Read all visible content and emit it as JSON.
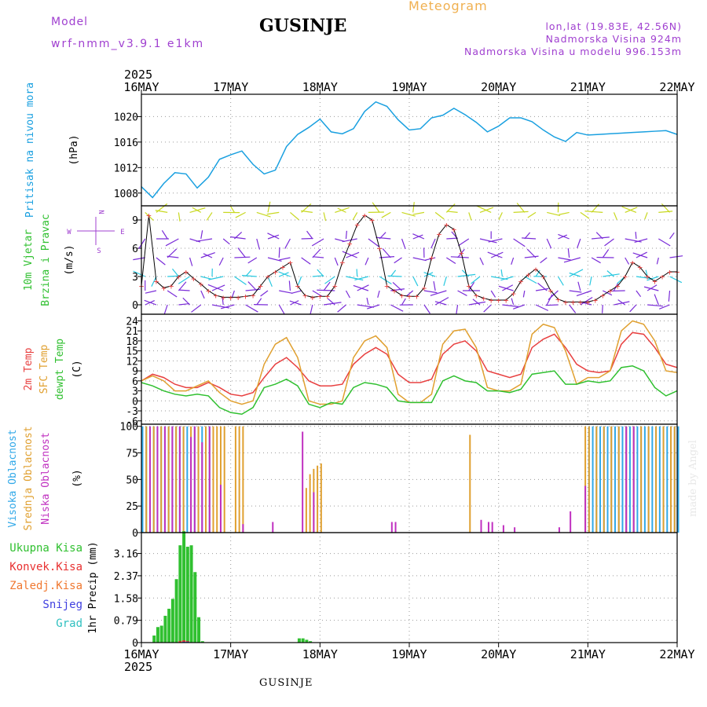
{
  "header": {
    "title": "GUSINJE",
    "product": "Meteogram",
    "model_label": "Model",
    "model_name": "wrf-nmm_v3.9.1  e1km",
    "lonlat": "lon,lat (19.83E, 42.56N)",
    "altitude": "Nadmorska Visina 924m",
    "model_altitude": "Nadmorska Visina u modelu 996.153m"
  },
  "footer": {
    "location": "GUSINJE"
  },
  "watermark": "made by Angel",
  "colors": {
    "pressure": "#1aa0e0",
    "wind_low": "#7a2cd8",
    "wind_mid": "#28c8e0",
    "wind_high": "#c8d820",
    "temp2m": "#e84040",
    "sfc_temp": "#e0a030",
    "dewpoint": "#30c030",
    "high_cloud": "#30a8e8",
    "mid_cloud": "#e0a030",
    "low_cloud": "#c030c0",
    "total_precip": "#30c030",
    "conv_precip": "#e83030",
    "snow": "#4040e0",
    "freezing": "#f07830",
    "hail": "#30c0c0",
    "grid": "#9a9a9a",
    "purple": "#a040d0"
  },
  "chart_data": [
    {
      "type": "line",
      "panel": "pressure",
      "ylabel_title": "Pritisak na nivou mora",
      "ylabel_unit": "(hPa)",
      "ylim": [
        1006,
        1023.5
      ],
      "yticks": [
        1008,
        1012,
        1016,
        1020
      ],
      "x_axis": {
        "year": "2025",
        "start": "16MAY",
        "end": "22MAY",
        "tick_labels": [
          "16MAY",
          "17MAY",
          "18MAY",
          "19MAY",
          "20MAY",
          "21MAY",
          "22MAY"
        ]
      },
      "x_unit": "hours from 16MAY 00UTC",
      "grid": true,
      "series": [
        {
          "x": [
            0,
            3,
            6,
            9,
            12,
            15,
            18,
            21,
            24,
            27,
            30,
            33,
            36,
            39,
            42,
            45,
            48,
            51,
            54,
            57,
            60,
            63,
            66,
            69,
            72,
            75,
            78,
            81,
            84,
            87,
            90,
            93,
            96,
            99,
            102,
            105,
            108,
            111,
            114,
            117,
            120,
            123,
            126,
            129,
            132,
            135,
            138,
            141,
            144
          ],
          "values": [
            1009,
            1007.3,
            1009.5,
            1011.2,
            1011,
            1008.8,
            1010.5,
            1013.3,
            1014,
            1014.6,
            1012.5,
            1011,
            1011.6,
            1015.3,
            1017.2,
            1018.3,
            1019.6,
            1017.6,
            1017.3,
            1018.1,
            1020.8,
            1022.3,
            1021.6,
            1019.5,
            1017.9,
            1018.1,
            1019.8,
            1020.2,
            1021.3,
            1020.3,
            1019.1,
            1017.6,
            1018.5,
            1019.8,
            1019.8,
            1019.2,
            1017.9,
            1016.8,
            1016.1,
            1017.5,
            1017.1,
            1017.2,
            1017.3,
            1017.4,
            1017.5,
            1017.6,
            1017.7,
            1017.8,
            1017.2
          ]
        }
      ]
    },
    {
      "type": "line",
      "panel": "wind",
      "ylabel_title": "10m Vjetar",
      "ylabel_title2": "Brzina i Pravac",
      "ylabel_unit": "(m/s)",
      "compass": {
        "n": "N",
        "s": "S",
        "w": "W",
        "e": "E"
      },
      "ylim": [
        -1,
        10.5
      ],
      "yticks": [
        0,
        3,
        6,
        9
      ],
      "grid": true,
      "series": [
        {
          "name": "",
          "x": [
            0,
            2,
            4,
            6,
            8,
            10,
            12,
            14,
            16,
            18,
            20,
            22,
            24,
            26,
            28,
            30,
            32,
            34,
            36,
            38,
            40,
            42,
            44,
            46,
            48,
            50,
            52,
            54,
            56,
            58,
            60,
            62,
            64,
            66,
            68,
            70,
            72,
            74,
            76,
            78,
            80,
            82,
            84,
            86,
            88,
            90,
            92,
            94,
            96,
            98,
            100,
            102,
            104,
            106,
            108,
            110,
            112,
            114,
            116,
            118,
            120,
            122,
            124,
            126,
            128,
            130,
            132,
            134,
            136,
            138,
            140,
            142,
            144
          ],
          "values": [
            2,
            9.5,
            2.5,
            1.8,
            2,
            3,
            3.5,
            2.8,
            2.2,
            1.5,
            1,
            0.8,
            0.8,
            0.8,
            0.9,
            1,
            2,
            3,
            3.5,
            4,
            4.5,
            2,
            1,
            0.8,
            0.9,
            0.9,
            2,
            4.5,
            6.5,
            8.5,
            9.5,
            9,
            6,
            2,
            1.5,
            1,
            0.9,
            0.9,
            1.8,
            5,
            7.5,
            8.5,
            8,
            5.5,
            2,
            1,
            0.7,
            0.5,
            0.5,
            0.5,
            1.2,
            2.5,
            3.2,
            3.8,
            3,
            1.5,
            0.6,
            0.3,
            0.3,
            0.3,
            0.3,
            0.5,
            1,
            1.5,
            2,
            3,
            4.5,
            4,
            3,
            2.5,
            3,
            3.5,
            3.5
          ]
        }
      ]
    },
    {
      "type": "line",
      "panel": "temperature",
      "ylabel_titles": [
        "2m Temp",
        "SFC Temp",
        "dewpt Temp"
      ],
      "ylabel_unit": "(C)",
      "ylim": [
        -7,
        26
      ],
      "yticks": [
        -6,
        -3,
        0,
        3,
        6,
        9,
        12,
        15,
        18,
        21,
        24
      ],
      "grid": true,
      "series": [
        {
          "name": "2m Temp",
          "x": [
            0,
            3,
            6,
            9,
            12,
            15,
            18,
            21,
            24,
            27,
            30,
            33,
            36,
            39,
            42,
            45,
            48,
            51,
            54,
            57,
            60,
            63,
            66,
            69,
            72,
            75,
            78,
            81,
            84,
            87,
            90,
            93,
            96,
            99,
            102,
            105,
            108,
            111,
            114,
            117,
            120,
            123,
            126,
            129,
            132,
            135,
            138,
            141,
            144
          ],
          "values": [
            6,
            8,
            7,
            5,
            4,
            4,
            5.5,
            4,
            2,
            1.5,
            2.5,
            7,
            11,
            13,
            10,
            6,
            4.5,
            4.5,
            5,
            11,
            14,
            16,
            14,
            8,
            5.5,
            5.5,
            6.5,
            14,
            17,
            18,
            15,
            9,
            8,
            7,
            8,
            16,
            18.5,
            20,
            16,
            11,
            9,
            8.5,
            9,
            17,
            20.5,
            20,
            16,
            11,
            10
          ]
        },
        {
          "name": "SFC Temp",
          "x": [
            0,
            3,
            6,
            9,
            12,
            15,
            18,
            21,
            24,
            27,
            30,
            33,
            36,
            39,
            42,
            45,
            48,
            51,
            54,
            57,
            60,
            63,
            66,
            69,
            72,
            75,
            78,
            81,
            84,
            87,
            90,
            93,
            96,
            99,
            102,
            105,
            108,
            111,
            114,
            117,
            120,
            123,
            126,
            129,
            132,
            135,
            138,
            141,
            144
          ],
          "values": [
            6,
            7.5,
            6,
            3,
            3,
            4.5,
            6,
            2.5,
            0,
            -1,
            0,
            11,
            17,
            19,
            13,
            0,
            -1,
            -1,
            0,
            13,
            18,
            19.5,
            16,
            2,
            -0.5,
            -0.5,
            2,
            17,
            21,
            21.5,
            16,
            4,
            3,
            3,
            5,
            20,
            23,
            22,
            15,
            5,
            7,
            7,
            9,
            21,
            24,
            23,
            18,
            9,
            8.5
          ]
        },
        {
          "name": "dewpt Temp",
          "x": [
            0,
            3,
            6,
            9,
            12,
            15,
            18,
            21,
            24,
            27,
            30,
            33,
            36,
            39,
            42,
            45,
            48,
            51,
            54,
            57,
            60,
            63,
            66,
            69,
            72,
            75,
            78,
            81,
            84,
            87,
            90,
            93,
            96,
            99,
            102,
            105,
            108,
            111,
            114,
            117,
            120,
            123,
            126,
            129,
            132,
            135,
            138,
            141,
            144
          ],
          "values": [
            5.5,
            4.5,
            3,
            2,
            1.5,
            2,
            1.5,
            -2,
            -3.5,
            -4,
            -2,
            4,
            5,
            6.5,
            4.5,
            -1,
            -2,
            -0.5,
            -1,
            4,
            5.5,
            5,
            4,
            0,
            -0.5,
            -0.5,
            -0.5,
            6,
            7.5,
            6,
            5.5,
            3,
            3,
            2.5,
            3.5,
            8,
            8.5,
            9,
            5,
            5,
            6,
            5.5,
            6,
            10,
            10.5,
            9,
            4,
            1.5,
            3
          ]
        }
      ]
    },
    {
      "type": "bar",
      "panel": "cloud",
      "ylabel_titles": [
        "Visoka Oblacnost",
        "Srednja Oblacnost",
        "Niska Oblacnost"
      ],
      "ylabel_unit": "(%)",
      "ylim": [
        0,
        102
      ],
      "yticks": [
        0,
        25,
        50,
        75,
        100
      ],
      "grid": true,
      "series": [
        {
          "name": "Visoka Oblacnost",
          "x": [
            0,
            1,
            2,
            3,
            4,
            5,
            6,
            7,
            8,
            9,
            10,
            11,
            12,
            14,
            15,
            16,
            17,
            18,
            120,
            121,
            122,
            123,
            124,
            125,
            126,
            127,
            128,
            129,
            130,
            131,
            132,
            133,
            134,
            135,
            136,
            137,
            138,
            139,
            140,
            141,
            142,
            143,
            144
          ],
          "values": [
            100,
            100,
            100,
            100,
            100,
            100,
            100,
            100,
            100,
            100,
            100,
            100,
            100,
            100,
            100,
            100,
            100,
            100,
            100,
            100,
            100,
            100,
            100,
            100,
            100,
            100,
            100,
            100,
            100,
            100,
            100,
            100,
            100,
            100,
            100,
            100,
            100,
            100,
            100,
            100,
            100,
            100,
            100
          ]
        },
        {
          "name": "Srednja Oblacnost",
          "x": [
            1,
            3,
            5,
            7,
            9,
            11,
            13,
            15,
            17,
            19,
            20,
            21,
            22,
            25,
            26,
            27,
            44,
            45,
            46,
            47,
            48,
            88,
            119,
            120,
            122,
            124,
            126,
            128,
            130,
            132,
            134,
            136,
            138,
            140,
            142,
            143
          ],
          "values": [
            100,
            100,
            100,
            100,
            100,
            100,
            100,
            100,
            100,
            100,
            100,
            100,
            100,
            100,
            100,
            100,
            42,
            55,
            60,
            63,
            65,
            92,
            100,
            100,
            100,
            100,
            100,
            100,
            100,
            100,
            100,
            100,
            100,
            100,
            100,
            100
          ]
        },
        {
          "name": "Niska Oblacnost",
          "x": [
            2,
            4,
            6,
            8,
            10,
            13,
            14,
            16,
            18,
            21,
            27,
            35,
            43,
            46,
            67,
            68,
            91,
            93,
            94,
            97,
            100,
            112,
            115,
            119,
            130,
            132
          ],
          "values": [
            100,
            100,
            100,
            100,
            100,
            90,
            100,
            85,
            100,
            45,
            8,
            10,
            95,
            38,
            10,
            10,
            12,
            10,
            10,
            7,
            5,
            5,
            20,
            44,
            100,
            100
          ]
        }
      ]
    },
    {
      "type": "bar",
      "panel": "precipitation",
      "ylabel_unit": "1hr Precip (mm)",
      "legend": [
        "Ukupna Kisa",
        "Konvek.Kisa",
        "Zaledj.Kisa",
        "Snijeg",
        "Grad"
      ],
      "ylim": [
        0,
        3.9
      ],
      "yticks": [
        0,
        0.79,
        1.58,
        2.37,
        3.16
      ],
      "ytick_labels": [
        "0",
        "0.79",
        "1.58",
        "2.37",
        "3.16"
      ],
      "grid": true,
      "series": [
        {
          "name": "Ukupna Kisa",
          "x": [
            3,
            4,
            5,
            6,
            7,
            8,
            9,
            10,
            11,
            12,
            13,
            14,
            15,
            16,
            42,
            43,
            44,
            45
          ],
          "values": [
            0.25,
            0.55,
            0.6,
            0.95,
            1.2,
            1.55,
            2.25,
            3.45,
            3.95,
            3.4,
            3.45,
            2.5,
            0.9,
            0.05,
            0.15,
            0.15,
            0.1,
            0.05
          ]
        },
        {
          "name": "Konvek.Kisa",
          "x": [
            10,
            11,
            12
          ],
          "values": [
            0.05,
            0.08,
            0.05
          ]
        },
        {
          "name": "Snijeg",
          "x": [
            11,
            12
          ],
          "values": [
            0.03,
            0.03
          ]
        }
      ]
    }
  ]
}
